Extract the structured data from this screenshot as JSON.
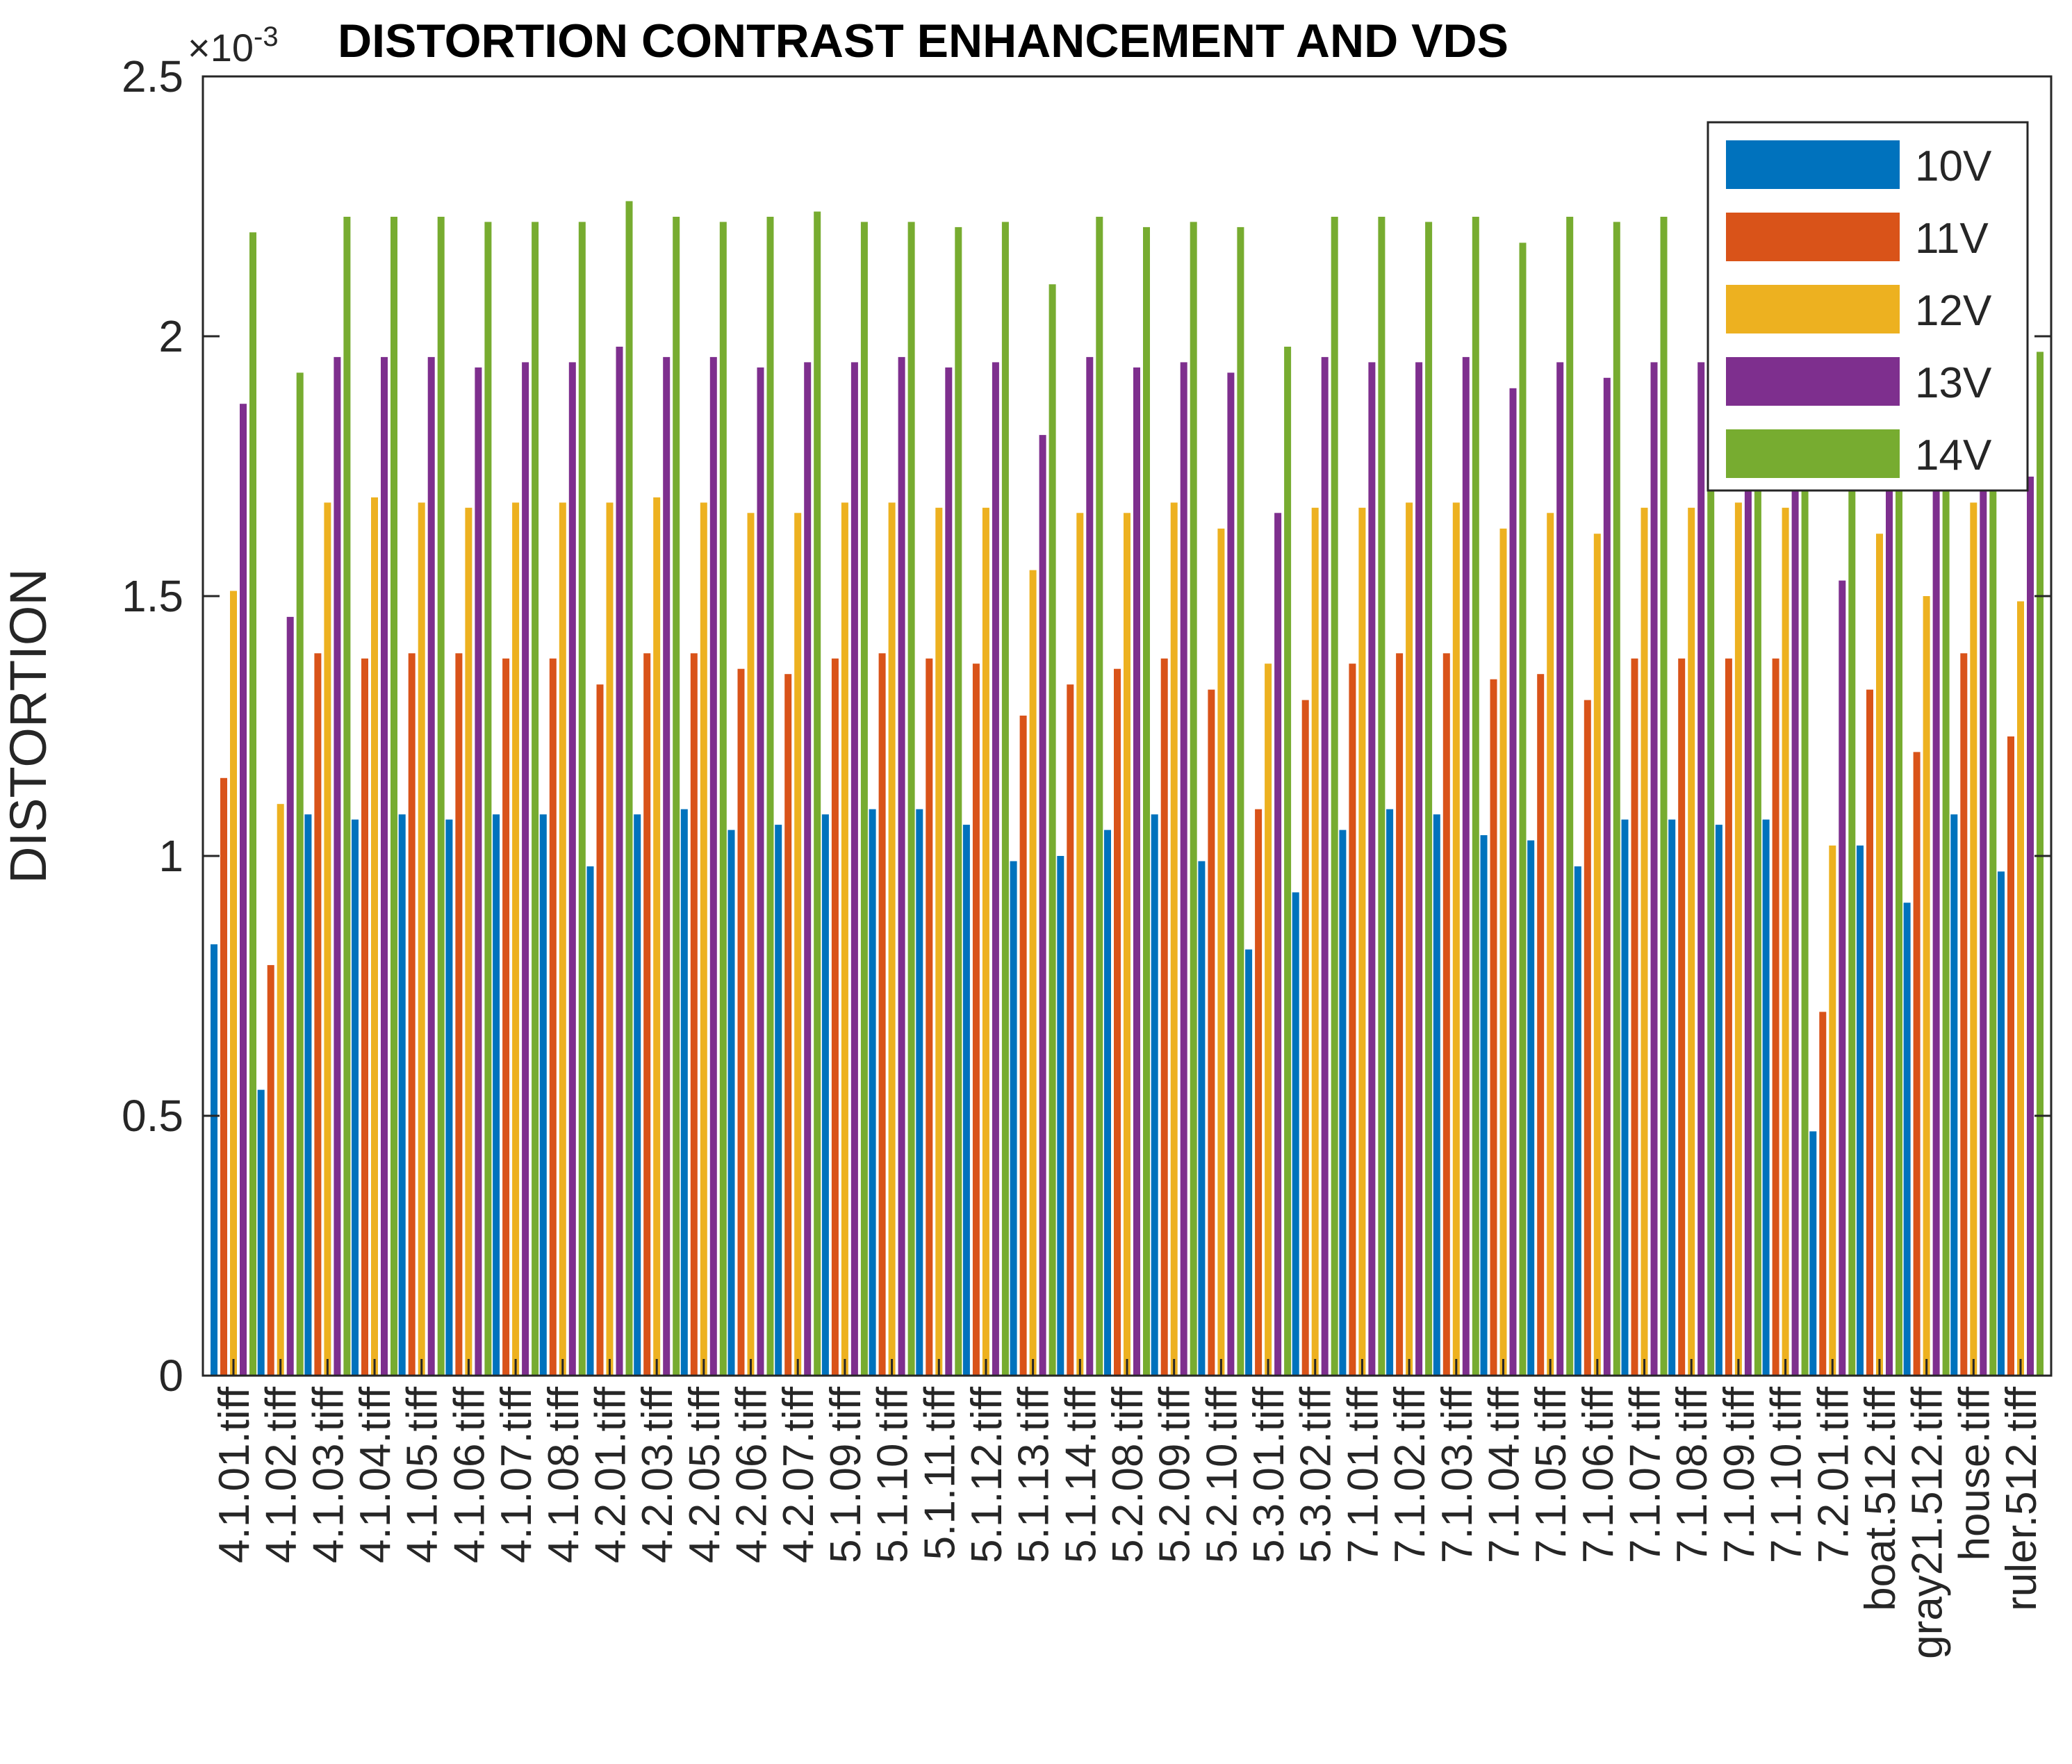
{
  "chart_data": {
    "type": "bar",
    "title": "DISTORTION CONTRAST ENHANCEMENT AND VDS",
    "exponent_label": "×10",
    "exponent_power": "-3",
    "ylabel": "DISTORTION",
    "xlabel": "",
    "ylim": [
      0,
      2.5
    ],
    "yticks": [
      "0",
      "0.5",
      "1",
      "1.5",
      "2",
      "2.5"
    ],
    "ytick_values": [
      0,
      0.5,
      1,
      1.5,
      2,
      2.5
    ],
    "legend_position": "top-right",
    "categories": [
      "4.1.01.tiff",
      "4.1.02.tiff",
      "4.1.03.tiff",
      "4.1.04.tiff",
      "4.1.05.tiff",
      "4.1.06.tiff",
      "4.1.07.tiff",
      "4.1.08.tiff",
      "4.2.01.tiff",
      "4.2.03.tiff",
      "4.2.05.tiff",
      "4.2.06.tiff",
      "4.2.07.tiff",
      "5.1.09.tiff",
      "5.1.10.tiff",
      "5.1.11.tiff",
      "5.1.12.tiff",
      "5.1.13.tiff",
      "5.1.14.tiff",
      "5.2.08.tiff",
      "5.2.09.tiff",
      "5.2.10.tiff",
      "5.3.01.tiff",
      "5.3.02.tiff",
      "7.1.01.tiff",
      "7.1.02.tiff",
      "7.1.03.tiff",
      "7.1.04.tiff",
      "7.1.05.tiff",
      "7.1.06.tiff",
      "7.1.07.tiff",
      "7.1.08.tiff",
      "7.1.09.tiff",
      "7.1.10.tiff",
      "7.2.01.tiff",
      "boat.512.tiff",
      "gray21.512.tiff",
      "house.tiff",
      "ruler.512.tiff"
    ],
    "series": [
      {
        "name": "10V",
        "color": "#0072BD",
        "values": [
          0.83,
          0.55,
          1.08,
          1.07,
          1.08,
          1.07,
          1.08,
          1.08,
          0.98,
          1.08,
          1.09,
          1.05,
          1.06,
          1.08,
          1.09,
          1.09,
          1.06,
          0.99,
          1.0,
          1.05,
          1.08,
          0.99,
          0.82,
          0.93,
          1.05,
          1.09,
          1.08,
          1.04,
          1.03,
          0.98,
          1.07,
          1.07,
          1.06,
          1.07,
          0.47,
          1.02,
          0.91,
          1.08,
          0.97
        ]
      },
      {
        "name": "11V",
        "color": "#D95319",
        "values": [
          1.15,
          0.79,
          1.39,
          1.38,
          1.39,
          1.39,
          1.38,
          1.38,
          1.33,
          1.39,
          1.39,
          1.36,
          1.35,
          1.38,
          1.39,
          1.38,
          1.37,
          1.27,
          1.33,
          1.36,
          1.38,
          1.32,
          1.09,
          1.3,
          1.37,
          1.39,
          1.39,
          1.34,
          1.35,
          1.3,
          1.38,
          1.38,
          1.38,
          1.38,
          0.7,
          1.32,
          1.2,
          1.39,
          1.23
        ]
      },
      {
        "name": "12V",
        "color": "#EDB120",
        "values": [
          1.51,
          1.1,
          1.68,
          1.69,
          1.68,
          1.67,
          1.68,
          1.68,
          1.68,
          1.69,
          1.68,
          1.66,
          1.66,
          1.68,
          1.68,
          1.67,
          1.67,
          1.55,
          1.66,
          1.66,
          1.68,
          1.63,
          1.37,
          1.67,
          1.67,
          1.68,
          1.68,
          1.63,
          1.66,
          1.62,
          1.67,
          1.67,
          1.68,
          1.67,
          1.02,
          1.62,
          1.5,
          1.68,
          1.49
        ]
      },
      {
        "name": "13V",
        "color": "#7E2F8E",
        "values": [
          1.87,
          1.46,
          1.96,
          1.96,
          1.96,
          1.94,
          1.95,
          1.95,
          1.98,
          1.96,
          1.96,
          1.94,
          1.95,
          1.95,
          1.96,
          1.94,
          1.95,
          1.81,
          1.96,
          1.94,
          1.95,
          1.93,
          1.66,
          1.96,
          1.95,
          1.95,
          1.96,
          1.9,
          1.95,
          1.92,
          1.95,
          1.95,
          1.95,
          1.95,
          1.53,
          1.94,
          1.8,
          1.95,
          1.73
        ]
      },
      {
        "name": "14V",
        "color": "#77AC30",
        "values": [
          2.2,
          1.93,
          2.23,
          2.23,
          2.23,
          2.22,
          2.22,
          2.22,
          2.26,
          2.23,
          2.22,
          2.23,
          2.24,
          2.22,
          2.22,
          2.21,
          2.22,
          2.1,
          2.23,
          2.21,
          2.22,
          2.21,
          1.98,
          2.23,
          2.23,
          2.22,
          2.23,
          2.18,
          2.23,
          2.22,
          2.23,
          2.23,
          2.22,
          2.23,
          1.92,
          2.23,
          2.0,
          2.23,
          1.97
        ]
      }
    ]
  }
}
